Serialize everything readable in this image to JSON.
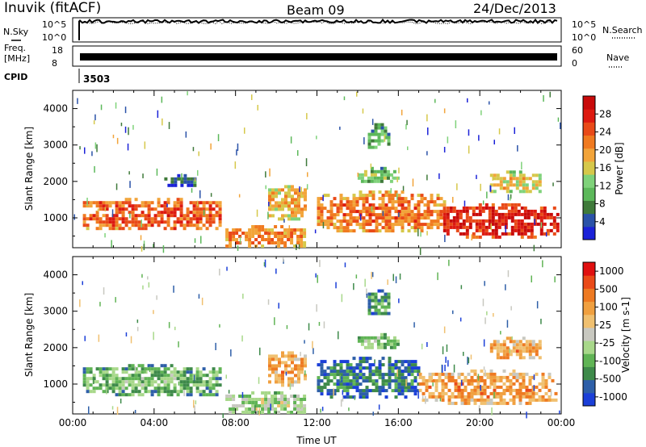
{
  "header": {
    "radar": "Inuvik (fitACF)",
    "beam": "Beam 09",
    "date": "24/Dec/2013"
  },
  "side_labels": {
    "nsky": "N.Sky",
    "freq_line1": "Freq.",
    "freq_line2": "[MHz]",
    "cpid": "CPID",
    "nsearch": "N.Search",
    "nave": "Nave"
  },
  "chart_data": [
    {
      "type": "line",
      "panel": "noise",
      "left_ticks": [
        "10^5",
        "10^0"
      ],
      "right_ticks": [
        "10^5",
        "10^0"
      ],
      "series": [
        {
          "name": "N.Sky",
          "style": "solid",
          "level": 0.85
        },
        {
          "name": "N.Search",
          "style": "dotted",
          "level": 0.8
        }
      ]
    },
    {
      "type": "line",
      "panel": "frequency",
      "left_ticks": [
        "18",
        "8"
      ],
      "right_ticks": [
        "60",
        "0"
      ],
      "series": [
        {
          "name": "Freq.",
          "style": "solid",
          "level": 0.45
        },
        {
          "name": "Nave",
          "style": "dotted",
          "level": 0.55
        }
      ]
    },
    {
      "type": "table",
      "panel": "cpid",
      "values": [
        "3503"
      ]
    },
    {
      "type": "heatmap",
      "panel": "power",
      "ylabel": "Slant Range [km]",
      "yticks": [
        "1000",
        "2000",
        "3000",
        "4000"
      ],
      "ylim": [
        180,
        4500
      ],
      "xlim": [
        0,
        24
      ],
      "colorbar": {
        "label": "Power [dB]",
        "ticks": [
          "4",
          "8",
          "12",
          "16",
          "20",
          "24",
          "28"
        ],
        "colors": [
          "#1b22d8",
          "#2a52a8",
          "#3f7a3a",
          "#5cb85a",
          "#7fd27a",
          "#d6c84a",
          "#f2a43a",
          "#f07a20",
          "#e94a18",
          "#dd1a10",
          "#c80a0a"
        ]
      },
      "echo_regions": [
        {
          "t": [
            0.5,
            7.3
          ],
          "r": [
            700,
            1550
          ],
          "level": 0.78
        },
        {
          "t": [
            7.5,
            11.4
          ],
          "r": [
            200,
            800
          ],
          "level": 0.7
        },
        {
          "t": [
            9.6,
            11.4
          ],
          "r": [
            1000,
            1900
          ],
          "level": 0.62
        },
        {
          "t": [
            12.0,
            18.2
          ],
          "r": [
            650,
            1750
          ],
          "level": 0.72
        },
        {
          "t": [
            18.2,
            23.8
          ],
          "r": [
            500,
            1400
          ],
          "level": 0.9
        },
        {
          "t": [
            20.5,
            23.0
          ],
          "r": [
            1700,
            2300
          ],
          "level": 0.55
        },
        {
          "t": [
            14.0,
            16.0
          ],
          "r": [
            2000,
            2400
          ],
          "level": 0.4
        },
        {
          "t": [
            14.5,
            15.5
          ],
          "r": [
            2900,
            3600
          ],
          "level": 0.35
        },
        {
          "t": [
            4.5,
            6.0
          ],
          "r": [
            1900,
            2200
          ],
          "level": 0.2
        }
      ]
    },
    {
      "type": "heatmap",
      "panel": "velocity",
      "ylabel": "Slant Range [km]",
      "xlabel": "Time UT",
      "yticks": [
        "1000",
        "2000",
        "3000",
        "4000"
      ],
      "xticks": [
        "00:00",
        "04:00",
        "08:00",
        "12:00",
        "16:00",
        "20:00",
        "00:00"
      ],
      "ylim": [
        180,
        4500
      ],
      "xlim": [
        0,
        24
      ],
      "colorbar": {
        "label": "Velocity [m s-1]",
        "ticks": [
          "1000",
          "500",
          "100",
          "25",
          "-25",
          "-100",
          "-500",
          "-1000"
        ],
        "colors": [
          "#1b3fd8",
          "#2e5fa8",
          "#3e8a4a",
          "#60b455",
          "#a8d88a",
          "#c8c8c0",
          "#f0c070",
          "#f0a040",
          "#ee7a22",
          "#ea4a18",
          "#e01010"
        ]
      },
      "echo_regions": [
        {
          "t": [
            0.5,
            7.3
          ],
          "r": [
            700,
            1550
          ],
          "level": 0.35
        },
        {
          "t": [
            7.5,
            11.4
          ],
          "r": [
            200,
            800
          ],
          "level": 0.45
        },
        {
          "t": [
            9.6,
            11.4
          ],
          "r": [
            1000,
            1900
          ],
          "level": 0.7
        },
        {
          "t": [
            12.0,
            17.0
          ],
          "r": [
            650,
            1750
          ],
          "level": 0.22
        },
        {
          "t": [
            17.0,
            23.8
          ],
          "r": [
            500,
            1400
          ],
          "level": 0.72
        },
        {
          "t": [
            20.5,
            23.0
          ],
          "r": [
            1700,
            2300
          ],
          "level": 0.7
        },
        {
          "t": [
            14.0,
            16.0
          ],
          "r": [
            2000,
            2400
          ],
          "level": 0.4
        },
        {
          "t": [
            14.5,
            15.5
          ],
          "r": [
            2900,
            3600
          ],
          "level": 0.3
        }
      ]
    }
  ]
}
